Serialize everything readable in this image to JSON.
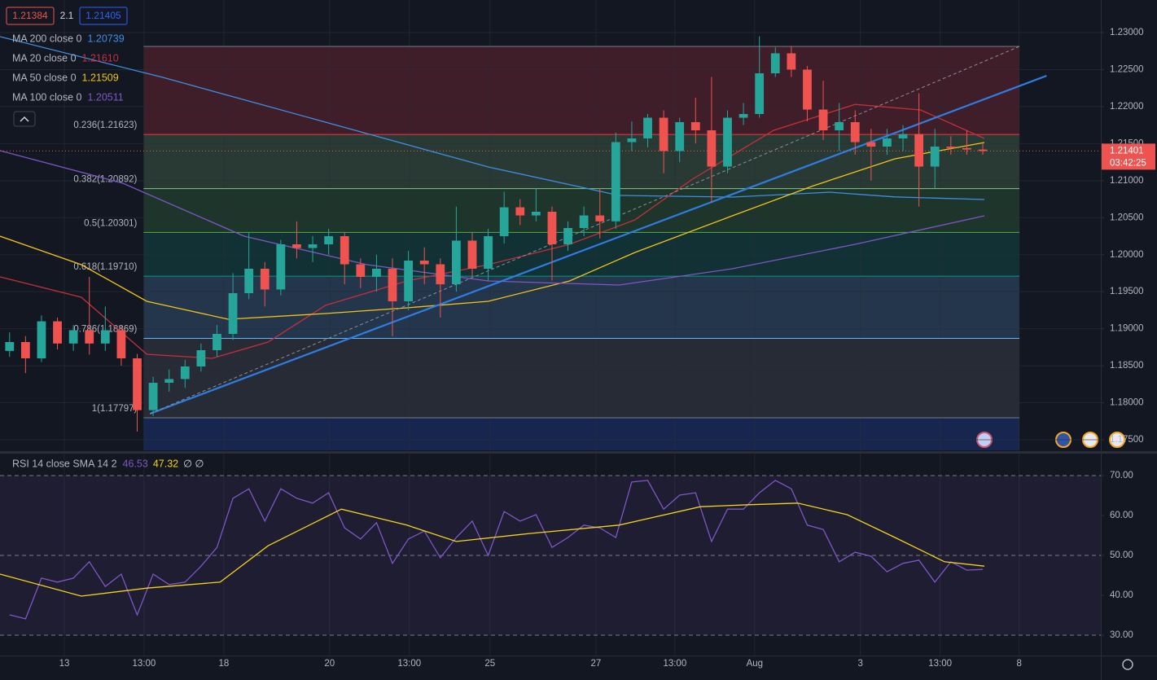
{
  "chart_data": [
    {
      "type": "candlestick",
      "quote_boxes": [
        {
          "value": 1.21384,
          "color": "#ef5350"
        },
        {
          "value": 2.1,
          "color": "#d1d4dc"
        },
        {
          "value": 1.21405,
          "color": "#2962ff"
        }
      ],
      "xlim": [
        -0.6,
        68.4
      ],
      "ylim": [
        1.17357,
        1.2344
      ],
      "xticks": [
        {
          "value": 3.43,
          "label": "13"
        },
        {
          "value": 8.43,
          "label": "13:00"
        },
        {
          "value": 13.43,
          "label": "18"
        },
        {
          "value": 20.06,
          "label": "20"
        },
        {
          "value": 25.06,
          "label": "13:00"
        },
        {
          "value": 30.11,
          "label": "25"
        },
        {
          "value": 36.75,
          "label": "27"
        },
        {
          "value": 41.7,
          "label": "13:00"
        },
        {
          "value": 46.7,
          "label": "Aug"
        },
        {
          "value": 53.33,
          "label": "3"
        },
        {
          "value": 58.33,
          "label": "13:00"
        },
        {
          "value": 63.28,
          "label": "8"
        }
      ],
      "yticks": [
        {
          "value": 1.23,
          "label": "1.23000"
        },
        {
          "value": 1.225,
          "label": "1.22500"
        },
        {
          "value": 1.22,
          "label": "1.22000"
        },
        {
          "value": 1.215,
          "label": "1.21500"
        },
        {
          "value": 1.21,
          "label": "1.21000"
        },
        {
          "value": 1.205,
          "label": "1.20500"
        },
        {
          "value": 1.2,
          "label": "1.20000"
        },
        {
          "value": 1.195,
          "label": "1.19500"
        },
        {
          "value": 1.19,
          "label": "1.19000"
        },
        {
          "value": 1.185,
          "label": "1.18500"
        },
        {
          "value": 1.18,
          "label": "1.18000"
        },
        {
          "value": 1.175,
          "label": "1.17500"
        }
      ],
      "grid": true,
      "up_color": "#26a69a",
      "down_color": "#ef5350",
      "open": [
        1.187,
        1.1882,
        1.186,
        1.191,
        1.188,
        1.1898,
        1.188,
        1.1898,
        1.186,
        1.179,
        1.1827,
        1.1832,
        1.1849,
        1.1871,
        1.1893,
        1.1948,
        1.1981,
        1.1953,
        1.2014,
        1.2009,
        1.2014,
        1.2025,
        1.1987,
        1.197,
        1.1981,
        1.1937,
        1.1992,
        1.1987,
        1.196,
        1.2019,
        1.1981,
        1.2025,
        1.2064,
        1.2053,
        1.2058,
        1.2014,
        1.2036,
        1.2053,
        1.2045,
        1.2152,
        1.2157,
        1.2185,
        1.214,
        1.2179,
        1.2168,
        1.2119,
        1.2185,
        1.219,
        1.2245,
        1.2272,
        1.225,
        1.2196,
        1.2168,
        1.2179,
        1.2152,
        1.2146,
        1.2157,
        1.2163,
        1.2119,
        1.2146,
        1.2144,
        1.2142
      ],
      "high": [
        1.1895,
        1.189,
        1.1918,
        1.1915,
        1.1905,
        1.197,
        1.193,
        1.1905,
        1.1866,
        1.1835,
        1.1845,
        1.1858,
        1.188,
        1.1905,
        1.1975,
        1.203,
        1.199,
        1.202,
        1.2045,
        1.2025,
        1.2035,
        1.203,
        1.1995,
        1.2,
        1.1995,
        1.2005,
        1.201,
        1.1995,
        1.2065,
        1.203,
        1.2035,
        1.2085,
        1.2075,
        1.209,
        1.2065,
        1.2045,
        1.2065,
        1.209,
        1.2165,
        1.218,
        1.219,
        1.2195,
        1.2185,
        1.2212,
        1.224,
        1.2195,
        1.2205,
        1.2295,
        1.228,
        1.2282,
        1.2255,
        1.2235,
        1.2205,
        1.2195,
        1.217,
        1.217,
        1.2175,
        1.2218,
        1.217,
        1.216,
        1.2168,
        1.215
      ],
      "low": [
        1.1862,
        1.184,
        1.1855,
        1.1872,
        1.187,
        1.1865,
        1.187,
        1.185,
        1.1761,
        1.1782,
        1.1815,
        1.182,
        1.1842,
        1.1862,
        1.1885,
        1.194,
        1.193,
        1.1945,
        1.1995,
        1.199,
        1.2,
        1.196,
        1.1955,
        1.195,
        1.189,
        1.1925,
        1.196,
        1.1915,
        1.195,
        1.197,
        1.1965,
        1.2015,
        1.204,
        1.2045,
        1.1965,
        1.2005,
        1.2025,
        1.2022,
        1.2035,
        1.214,
        1.2145,
        1.211,
        1.2125,
        1.215,
        1.207,
        1.211,
        1.2175,
        1.2185,
        1.224,
        1.224,
        1.218,
        1.2155,
        1.214,
        1.2135,
        1.21,
        1.2135,
        1.214,
        1.2065,
        1.209,
        1.2135,
        1.2135,
        1.2135
      ],
      "close": [
        1.1882,
        1.186,
        1.191,
        1.188,
        1.1898,
        1.188,
        1.1898,
        1.186,
        1.179,
        1.1827,
        1.1832,
        1.1849,
        1.1871,
        1.1893,
        1.1948,
        1.1981,
        1.1953,
        1.2014,
        1.2009,
        1.2014,
        1.2025,
        1.1987,
        1.197,
        1.1981,
        1.1937,
        1.1992,
        1.1987,
        1.196,
        1.2019,
        1.1981,
        1.2025,
        1.2064,
        1.2053,
        1.2058,
        1.2014,
        1.2036,
        1.2053,
        1.2045,
        1.2152,
        1.2157,
        1.2185,
        1.214,
        1.2179,
        1.2168,
        1.2119,
        1.2185,
        1.219,
        1.2245,
        1.2272,
        1.225,
        1.2196,
        1.2168,
        1.2179,
        1.2152,
        1.2146,
        1.2157,
        1.2163,
        1.2119,
        1.2146,
        1.2144,
        1.2142,
        1.214
      ],
      "series": [
        {
          "name": "MA 200 close 0",
          "last_label": "1.20739",
          "color": "#3d8fe0",
          "x": [
            -0.6,
            9.6,
            19.8,
            30,
            38.2,
            45.3,
            51.4,
            55.5,
            61.1
          ],
          "values": [
            1.22945,
            1.22395,
            1.2179,
            1.21185,
            1.208,
            1.20778,
            1.20844,
            1.2078,
            1.20745
          ]
        },
        {
          "name": "MA 20 close 0",
          "last_label": "1.21610",
          "color": "#c62f3a",
          "x": [
            -0.6,
            4.5,
            8.6,
            12.7,
            16.2,
            19.8,
            24.9,
            30,
            35.1,
            39.2,
            42.8,
            47.9,
            53,
            57.1,
            61.1
          ],
          "values": [
            1.197,
            1.19425,
            1.18655,
            1.186,
            1.1882,
            1.19315,
            1.19645,
            1.19865,
            1.2014,
            1.2047,
            1.2102,
            1.2168,
            1.2203,
            1.21955,
            1.2157
          ]
        },
        {
          "name": "MA 50 close 0",
          "last_label": "1.21509",
          "color": "#f2c318",
          "x": [
            -0.6,
            4.5,
            8.6,
            13.7,
            19.8,
            24.9,
            30,
            35.1,
            39.2,
            45.3,
            50.4,
            55.5,
            61.1
          ],
          "values": [
            1.2025,
            1.19865,
            1.1937,
            1.19128,
            1.19205,
            1.19282,
            1.1937,
            1.19645,
            1.2003,
            1.20525,
            1.20932,
            1.21295,
            1.21515
          ]
        },
        {
          "name": "MA 100 close 0",
          "last_label": "1.20511",
          "color": "#7e57c2",
          "x": [
            -0.6,
            7.1,
            14.7,
            22.4,
            30,
            38.2,
            45.3,
            53,
            61.1
          ],
          "values": [
            1.21405,
            1.20965,
            1.2025,
            1.19865,
            1.19645,
            1.1959,
            1.1981,
            1.2014,
            1.20525
          ]
        }
      ],
      "fib_x": [
        8.4,
        63.3
      ],
      "fib_levels": [
        {
          "value": 1.22813,
          "label": null
        },
        {
          "value": 1.21623,
          "label": "0.236(1.21623)"
        },
        {
          "value": 1.20892,
          "label": "0.382(1.20892)"
        },
        {
          "value": 1.20301,
          "label": "0.5(1.20301)"
        },
        {
          "value": 1.1971,
          "label": "0.618(1.19710)"
        },
        {
          "value": 1.18869,
          "label": "0.786(1.18869)"
        },
        {
          "value": 1.17797,
          "label": "1(1.17797)"
        }
      ],
      "fib_colors": [
        "#787b86",
        "#f23645",
        "#81c784",
        "#4caf50",
        "#089981",
        "#64b5f6",
        "#787b86"
      ],
      "zone_colors": [
        "#f23645",
        "#81c784",
        "#4caf50",
        "#089981",
        "#64b5f6",
        "#787b86",
        "#2962ff"
      ],
      "trendlines": [
        {
          "color": "#2f7de1",
          "dashed": false,
          "x": [
            8.8,
            65.0
          ],
          "values": [
            1.17852,
            1.22417
          ]
        },
        {
          "color": "#8a8e99",
          "dashed": true,
          "x": [
            8.8,
            63.3
          ],
          "values": [
            1.17852,
            1.22813
          ]
        }
      ],
      "last_price": {
        "value": 1.21401,
        "label": "1.21401"
      },
      "countdown": "03:42:25"
    },
    {
      "type": "line",
      "title": "RSI 14 close SMA 14 2",
      "extra": "∅ ∅",
      "xlim": [
        -0.6,
        68.4
      ],
      "ylim": [
        24.9,
        75.51
      ],
      "yticks": [
        {
          "value": 70,
          "label": "70.00"
        },
        {
          "value": 60,
          "label": "60.00"
        },
        {
          "value": 50,
          "label": "50.00"
        },
        {
          "value": 40,
          "label": "40.00"
        },
        {
          "value": 30,
          "label": "30.00"
        }
      ],
      "dashed_levels": [
        70,
        50,
        30
      ],
      "band": [
        30,
        70
      ],
      "series": [
        {
          "name": "RSI",
          "last_label": "46.53",
          "color": "#7e57c2",
          "x": [
            0,
            1,
            2,
            3,
            4,
            5,
            6,
            7,
            8,
            9,
            10,
            11,
            12,
            13,
            14,
            15,
            16,
            17,
            18,
            19,
            20,
            21,
            22,
            23,
            24,
            25,
            26,
            27,
            28,
            29,
            30,
            31,
            32,
            33,
            34,
            35,
            36,
            37,
            38,
            39,
            40,
            41,
            42,
            43,
            44,
            45,
            46,
            47,
            48,
            49,
            50,
            51,
            52,
            53,
            54,
            55,
            56,
            57,
            58,
            59,
            60,
            61
          ],
          "values": [
            35.1,
            34.1,
            44.3,
            43.3,
            44.3,
            48.4,
            42.2,
            45.3,
            35.1,
            45.3,
            42.7,
            43.3,
            47.3,
            52.0,
            64.3,
            66.7,
            58.6,
            66.7,
            64.3,
            63.1,
            65.7,
            56.9,
            54.1,
            58.2,
            48.0,
            54.1,
            56.1,
            49.4,
            54.5,
            58.6,
            50.0,
            61.0,
            58.6,
            60.2,
            52.0,
            54.5,
            57.6,
            56.9,
            54.5,
            68.4,
            68.8,
            61.6,
            65.1,
            65.7,
            53.5,
            61.6,
            61.6,
            65.7,
            68.8,
            66.7,
            57.6,
            56.5,
            48.4,
            50.8,
            49.8,
            45.9,
            48.0,
            48.8,
            43.3,
            48.4,
            46.3,
            46.5
          ]
        },
        {
          "name": "SMA",
          "last_label": "47.32",
          "color": "#f5d31b",
          "x": [
            -0.6,
            4.5,
            8.6,
            13.2,
            16.2,
            20.8,
            24.9,
            28,
            32.6,
            38.2,
            43.3,
            46.3,
            49.4,
            52.5,
            55.5,
            58.6,
            61.1
          ],
          "values": [
            45.3,
            39.8,
            41.8,
            43.3,
            52.4,
            61.6,
            57.6,
            53.5,
            55.5,
            57.6,
            62.2,
            62.7,
            63.1,
            60.2,
            54.5,
            48.4,
            47.3
          ]
        }
      ]
    }
  ]
}
